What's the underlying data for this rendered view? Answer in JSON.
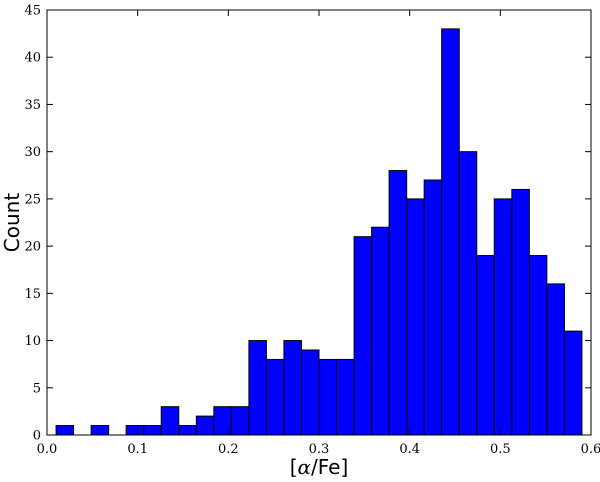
{
  "chart_data": {
    "type": "bar",
    "subtype": "histogram",
    "xlabel_prefix": "[",
    "xlabel_alpha": "α",
    "xlabel_suffix": "/Fe]",
    "ylabel": "Count",
    "xlim": [
      0.0,
      0.6
    ],
    "ylim": [
      0,
      45
    ],
    "bar_color": "#0000ff",
    "xticks": [
      "0.0",
      "0.1",
      "0.2",
      "0.3",
      "0.4",
      "0.5",
      "0.6"
    ],
    "yticks": [
      "0",
      "5",
      "10",
      "15",
      "20",
      "25",
      "30",
      "35",
      "40",
      "45"
    ],
    "bins": [
      {
        "x0": 0.01,
        "x1": 0.0293,
        "count": 1
      },
      {
        "x0": 0.0293,
        "x1": 0.0487,
        "count": 0
      },
      {
        "x0": 0.0487,
        "x1": 0.068,
        "count": 1
      },
      {
        "x0": 0.068,
        "x1": 0.0873,
        "count": 0
      },
      {
        "x0": 0.0873,
        "x1": 0.1067,
        "count": 1
      },
      {
        "x0": 0.1067,
        "x1": 0.126,
        "count": 1
      },
      {
        "x0": 0.126,
        "x1": 0.1453,
        "count": 3
      },
      {
        "x0": 0.1453,
        "x1": 0.1647,
        "count": 1
      },
      {
        "x0": 0.1647,
        "x1": 0.184,
        "count": 2
      },
      {
        "x0": 0.184,
        "x1": 0.2033,
        "count": 3
      },
      {
        "x0": 0.2033,
        "x1": 0.2227,
        "count": 3
      },
      {
        "x0": 0.2227,
        "x1": 0.242,
        "count": 10
      },
      {
        "x0": 0.242,
        "x1": 0.2613,
        "count": 8
      },
      {
        "x0": 0.2613,
        "x1": 0.2807,
        "count": 10
      },
      {
        "x0": 0.2807,
        "x1": 0.3,
        "count": 9
      },
      {
        "x0": 0.3,
        "x1": 0.3193,
        "count": 8
      },
      {
        "x0": 0.3193,
        "x1": 0.3387,
        "count": 8
      },
      {
        "x0": 0.3387,
        "x1": 0.358,
        "count": 21
      },
      {
        "x0": 0.358,
        "x1": 0.3773,
        "count": 22
      },
      {
        "x0": 0.3773,
        "x1": 0.3967,
        "count": 28
      },
      {
        "x0": 0.3967,
        "x1": 0.416,
        "count": 25
      },
      {
        "x0": 0.416,
        "x1": 0.4353,
        "count": 27
      },
      {
        "x0": 0.4353,
        "x1": 0.4547,
        "count": 43
      },
      {
        "x0": 0.4547,
        "x1": 0.474,
        "count": 30
      },
      {
        "x0": 0.474,
        "x1": 0.4933,
        "count": 19
      },
      {
        "x0": 0.4933,
        "x1": 0.5127,
        "count": 25
      },
      {
        "x0": 0.5127,
        "x1": 0.532,
        "count": 26
      },
      {
        "x0": 0.532,
        "x1": 0.5513,
        "count": 19
      },
      {
        "x0": 0.5513,
        "x1": 0.5707,
        "count": 16
      },
      {
        "x0": 0.5707,
        "x1": 0.59,
        "count": 11
      }
    ]
  }
}
